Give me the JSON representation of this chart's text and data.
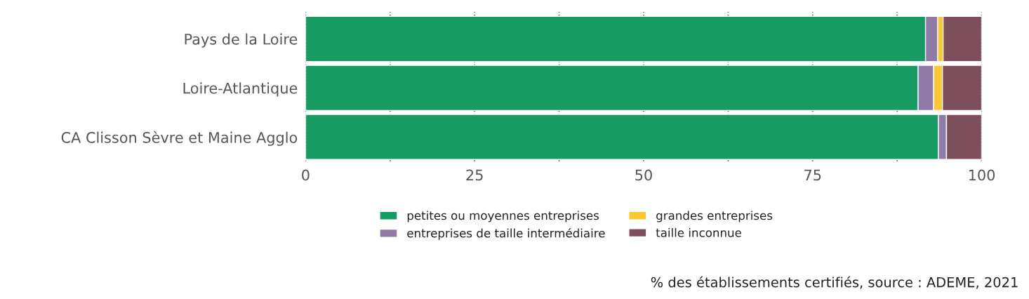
{
  "chart_data": {
    "type": "bar",
    "orientation": "horizontal",
    "stacked": true,
    "categories": [
      "Pays de la Loire",
      "Loire-Atlantique",
      "CA Clisson Sèvre et Maine Agglo"
    ],
    "series": [
      {
        "name": "petites ou moyennes entreprises",
        "color": "#169b62",
        "values": [
          91.7,
          90.6,
          93.6
        ]
      },
      {
        "name": "entreprises de taille intermédiaire",
        "color": "#8f7aa8",
        "values": [
          1.8,
          2.3,
          1.2
        ]
      },
      {
        "name": "grandes entreprises",
        "color": "#fdc82f",
        "values": [
          0.8,
          1.3,
          0
        ]
      },
      {
        "name": "taille inconnue",
        "color": "#7d4e5b",
        "values": [
          5.7,
          5.8,
          5.2
        ]
      }
    ],
    "xlim": [
      0,
      100
    ],
    "xticks": [
      0,
      {
        "value": 12.5,
        "label": null
      },
      25,
      {
        "value": 37.5,
        "label": null
      },
      50,
      {
        "value": 62.5,
        "label": null
      },
      75,
      {
        "value": 87.5,
        "label": null
      },
      100
    ],
    "grid": true,
    "line_style": "dotted",
    "legend": "bottom",
    "annotations": [
      "% des établissements certifiés, source : ADEME, 2021"
    ]
  }
}
